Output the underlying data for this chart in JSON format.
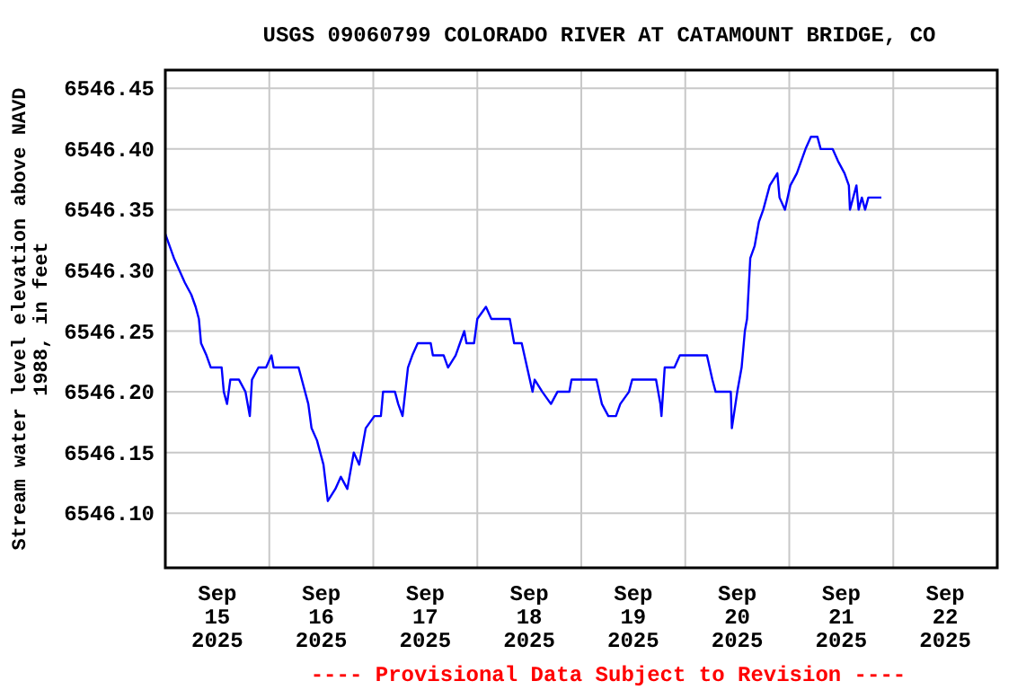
{
  "chart_data": {
    "type": "line",
    "title": "USGS 09060799 COLORADO RIVER AT CATAMOUNT BRIDGE, CO",
    "ylabel": "Stream water level elevation above NAVD 1988, in feet",
    "annotations": [
      "---- Provisional Data Subject to Revision ----"
    ],
    "xlim": [
      "2025-09-15T00:00",
      "2025-09-23T00:00"
    ],
    "xticks": [
      {
        "value": "2025-09-16T00:00",
        "label": null
      },
      {
        "value": "2025-09-17T00:00",
        "label": null
      },
      {
        "value": "2025-09-18T00:00",
        "label": null
      },
      {
        "value": "2025-09-19T00:00",
        "label": null
      },
      {
        "value": "2025-09-20T00:00",
        "label": null
      },
      {
        "value": "2025-09-21T00:00",
        "label": null
      },
      {
        "value": "2025-09-22T00:00",
        "label": null
      },
      {
        "value": "2025-09-15T12:00",
        "label": "Sep 15 2025"
      },
      {
        "value": "2025-09-16T12:00",
        "label": "Sep 16 2025"
      },
      {
        "value": "2025-09-17T12:00",
        "label": "Sep 17 2025"
      },
      {
        "value": "2025-09-18T12:00",
        "label": "Sep 18 2025"
      },
      {
        "value": "2025-09-19T12:00",
        "label": "Sep 19 2025"
      },
      {
        "value": "2025-09-20T12:00",
        "label": "Sep 20 2025"
      },
      {
        "value": "2025-09-21T12:00",
        "label": "Sep 21 2025"
      },
      {
        "value": "2025-09-22T12:00",
        "label": "Sep 22 2025"
      }
    ],
    "ylim": [
      6546.055,
      6546.465
    ],
    "yticks": [
      {
        "value": 6546.1,
        "label": "6546.10"
      },
      {
        "value": 6546.15,
        "label": "6546.15"
      },
      {
        "value": 6546.2,
        "label": "6546.20"
      },
      {
        "value": 6546.25,
        "label": "6546.25"
      },
      {
        "value": 6546.3,
        "label": "6546.30"
      },
      {
        "value": 6546.35,
        "label": "6546.35"
      },
      {
        "value": 6546.4,
        "label": "6546.40"
      },
      {
        "value": 6546.45,
        "label": "6546.45"
      }
    ],
    "grid": true,
    "marker": "none",
    "line_style": "solid",
    "series": [
      {
        "color": "#0000ff",
        "x": [
          "2025-09-15T00:00",
          "2025-09-15T01:00",
          "2025-09-15T02:00",
          "2025-09-15T03:15",
          "2025-09-15T04:30",
          "2025-09-15T06:00",
          "2025-09-15T07:00",
          "2025-09-15T07:45",
          "2025-09-15T08:15",
          "2025-09-15T09:30",
          "2025-09-15T10:30",
          "2025-09-15T13:00",
          "2025-09-15T13:30",
          "2025-09-15T14:15",
          "2025-09-15T15:00",
          "2025-09-15T17:00",
          "2025-09-15T18:30",
          "2025-09-15T19:30",
          "2025-09-15T20:00",
          "2025-09-15T21:30",
          "2025-09-15T23:15",
          "2025-09-16T00:30",
          "2025-09-16T01:00",
          "2025-09-16T06:45",
          "2025-09-16T07:30",
          "2025-09-16T09:00",
          "2025-09-16T09:45",
          "2025-09-16T11:00",
          "2025-09-16T12:30",
          "2025-09-16T13:30",
          "2025-09-16T15:15",
          "2025-09-16T16:30",
          "2025-09-16T18:00",
          "2025-09-16T19:30",
          "2025-09-16T20:45",
          "2025-09-16T22:15",
          "2025-09-17T00:15",
          "2025-09-17T01:45",
          "2025-09-17T02:15",
          "2025-09-17T05:00",
          "2025-09-17T05:45",
          "2025-09-17T06:45",
          "2025-09-17T08:00",
          "2025-09-17T09:00",
          "2025-09-17T10:15",
          "2025-09-17T13:15",
          "2025-09-17T13:45",
          "2025-09-17T16:15",
          "2025-09-17T17:15",
          "2025-09-17T19:00",
          "2025-09-17T20:00",
          "2025-09-17T21:00",
          "2025-09-17T21:30",
          "2025-09-17T23:15",
          "2025-09-18T00:00",
          "2025-09-18T02:00",
          "2025-09-18T03:15",
          "2025-09-18T07:30",
          "2025-09-18T08:30",
          "2025-09-18T10:15",
          "2025-09-18T11:30",
          "2025-09-18T12:45",
          "2025-09-18T13:15",
          "2025-09-18T15:00",
          "2025-09-18T17:00",
          "2025-09-18T18:30",
          "2025-09-18T21:15",
          "2025-09-18T21:45",
          "2025-09-19T00:00",
          "2025-09-19T03:30",
          "2025-09-19T04:45",
          "2025-09-19T06:15",
          "2025-09-19T08:00",
          "2025-09-19T09:00",
          "2025-09-19T11:00",
          "2025-09-19T11:45",
          "2025-09-19T17:15",
          "2025-09-19T18:15",
          "2025-09-19T18:30",
          "2025-09-19T19:15",
          "2025-09-19T21:30",
          "2025-09-19T22:45",
          "2025-09-20T05:00",
          "2025-09-20T06:15",
          "2025-09-20T07:00",
          "2025-09-20T10:30",
          "2025-09-20T10:45",
          "2025-09-20T12:00",
          "2025-09-20T13:00",
          "2025-09-20T13:45",
          "2025-09-20T14:15",
          "2025-09-20T15:00",
          "2025-09-20T16:00",
          "2025-09-20T17:00",
          "2025-09-20T18:00",
          "2025-09-20T18:45",
          "2025-09-20T19:30",
          "2025-09-20T21:15",
          "2025-09-20T21:45",
          "2025-09-20T23:00",
          "2025-09-21T00:15",
          "2025-09-21T01:45",
          "2025-09-21T02:45",
          "2025-09-21T03:45",
          "2025-09-21T05:00",
          "2025-09-21T06:30",
          "2025-09-21T07:15",
          "2025-09-21T10:00",
          "2025-09-21T11:15",
          "2025-09-21T12:45",
          "2025-09-21T13:45",
          "2025-09-21T14:00",
          "2025-09-21T15:30",
          "2025-09-21T16:00",
          "2025-09-21T16:45",
          "2025-09-21T17:30",
          "2025-09-21T18:15",
          "2025-09-21T21:15"
        ],
        "values": [
          6546.33,
          6546.32,
          6546.31,
          6546.3,
          6546.29,
          6546.28,
          6546.27,
          6546.26,
          6546.24,
          6546.23,
          6546.22,
          6546.22,
          6546.2,
          6546.19,
          6546.21,
          6546.21,
          6546.2,
          6546.18,
          6546.21,
          6546.22,
          6546.22,
          6546.23,
          6546.22,
          6546.22,
          6546.21,
          6546.19,
          6546.17,
          6546.16,
          6546.14,
          6546.11,
          6546.12,
          6546.13,
          6546.12,
          6546.15,
          6546.14,
          6546.17,
          6546.18,
          6546.18,
          6546.2,
          6546.2,
          6546.19,
          6546.18,
          6546.22,
          6546.23,
          6546.24,
          6546.24,
          6546.23,
          6546.23,
          6546.22,
          6546.23,
          6546.24,
          6546.25,
          6546.24,
          6546.24,
          6546.26,
          6546.27,
          6546.26,
          6546.26,
          6546.24,
          6546.24,
          6546.22,
          6546.2,
          6546.21,
          6546.2,
          6546.19,
          6546.2,
          6546.2,
          6546.21,
          6546.21,
          6546.21,
          6546.19,
          6546.18,
          6546.18,
          6546.19,
          6546.2,
          6546.21,
          6546.21,
          6546.19,
          6546.18,
          6546.22,
          6546.22,
          6546.23,
          6546.23,
          6546.21,
          6546.2,
          6546.2,
          6546.17,
          6546.2,
          6546.22,
          6546.25,
          6546.26,
          6546.31,
          6546.32,
          6546.34,
          6546.35,
          6546.36,
          6546.37,
          6546.38,
          6546.36,
          6546.35,
          6546.37,
          6546.38,
          6546.39,
          6546.4,
          6546.41,
          6546.41,
          6546.4,
          6546.4,
          6546.39,
          6546.38,
          6546.37,
          6546.35,
          6546.37,
          6546.35,
          6546.36,
          6546.35,
          6546.36,
          6546.36
        ]
      }
    ]
  }
}
